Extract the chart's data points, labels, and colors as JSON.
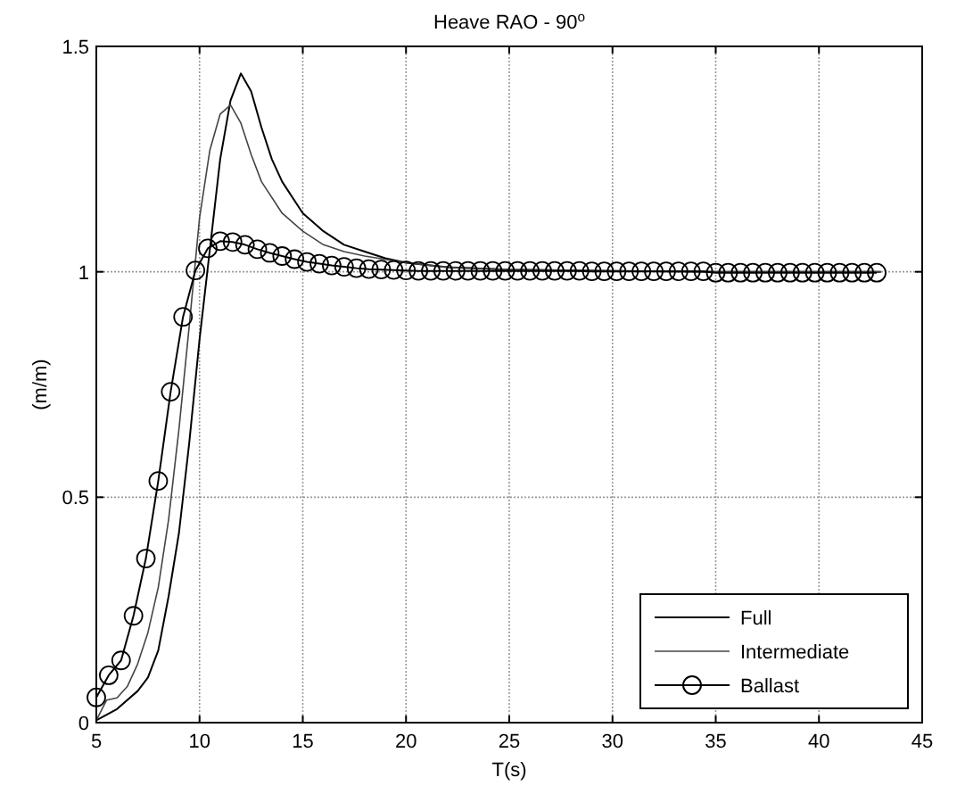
{
  "chart_data": {
    "type": "line",
    "title": "Heave RAO - 90$^{o}$",
    "xlabel": "T(s)",
    "ylabel": "(m/m)",
    "xlim": [
      5,
      45
    ],
    "ylim": [
      0,
      1.5
    ],
    "xticks": [
      5,
      10,
      15,
      20,
      25,
      30,
      35,
      40,
      45
    ],
    "yticks": [
      0,
      0.5,
      1,
      1.5
    ],
    "grid": true,
    "legend": "bottom right",
    "series": [
      {
        "name": "Full",
        "color": "#000000",
        "marker": "none",
        "x": [
          5,
          6,
          7,
          7.5,
          8,
          8.5,
          9,
          9.5,
          10,
          10.5,
          11,
          11.5,
          12,
          12.5,
          13,
          13.5,
          14,
          15,
          16,
          17,
          18,
          19,
          20,
          22,
          25,
          30,
          35,
          40,
          43
        ],
        "values": [
          0.005,
          0.03,
          0.07,
          0.1,
          0.16,
          0.28,
          0.42,
          0.62,
          0.85,
          1.05,
          1.25,
          1.38,
          1.44,
          1.4,
          1.32,
          1.25,
          1.2,
          1.13,
          1.09,
          1.06,
          1.045,
          1.03,
          1.02,
          1.01,
          1.005,
          1.002,
          1.0,
          1.0,
          1.0
        ]
      },
      {
        "name": "Intermediate",
        "color": "#444444",
        "marker": "none",
        "x": [
          5,
          5.5,
          6,
          6.5,
          7,
          7.5,
          8,
          8.5,
          9,
          9.5,
          10,
          10.5,
          11,
          11.5,
          12,
          12.5,
          13,
          14,
          15,
          16,
          17,
          18,
          20,
          22,
          25,
          30,
          35,
          40,
          43
        ],
        "values": [
          0.005,
          0.05,
          0.055,
          0.08,
          0.13,
          0.2,
          0.3,
          0.45,
          0.65,
          0.88,
          1.12,
          1.27,
          1.35,
          1.37,
          1.33,
          1.26,
          1.2,
          1.13,
          1.09,
          1.06,
          1.045,
          1.035,
          1.02,
          1.01,
          1.005,
          1.002,
          1.0,
          1.0,
          1.0
        ]
      },
      {
        "name": "Ballast",
        "color": "#000000",
        "marker": "circle",
        "x": [
          5,
          5.6,
          6.2,
          6.8,
          7.4,
          8,
          8.6,
          9.2,
          9.8,
          10.4,
          11,
          11.6,
          12.2,
          12.8,
          13.4,
          14,
          14.6,
          15.2,
          15.8,
          16.4,
          17,
          17.6,
          18.2,
          18.8,
          19.4,
          20,
          20.6,
          21.2,
          21.8,
          22.4,
          23,
          23.6,
          24.2,
          24.8,
          25.4,
          26,
          26.6,
          27.2,
          27.8,
          28.4,
          29,
          29.6,
          30.2,
          30.8,
          31.4,
          32,
          32.6,
          33.2,
          33.8,
          34.4,
          35,
          35.6,
          36.2,
          36.8,
          37.4,
          38,
          38.6,
          39.2,
          39.8,
          40.4,
          41,
          41.6,
          42.2,
          42.8
        ],
        "values": [
          0.056,
          0.105,
          0.138,
          0.237,
          0.364,
          0.536,
          0.734,
          0.9,
          1.003,
          1.052,
          1.068,
          1.066,
          1.06,
          1.05,
          1.042,
          1.035,
          1.028,
          1.022,
          1.018,
          1.014,
          1.011,
          1.008,
          1.006,
          1.005,
          1.004,
          1.003,
          1.002,
          1.002,
          1.002,
          1.002,
          1.002,
          1.002,
          1.002,
          1.002,
          1.002,
          1.002,
          1.002,
          1.002,
          1.002,
          1.002,
          1.001,
          1.001,
          1.001,
          1.001,
          1.001,
          1.001,
          1.001,
          1.001,
          1.001,
          1.001,
          0.998,
          0.998,
          0.998,
          0.998,
          0.998,
          0.998,
          0.998,
          0.998,
          0.998,
          0.998,
          0.998,
          0.998,
          0.998,
          0.998
        ]
      }
    ]
  }
}
